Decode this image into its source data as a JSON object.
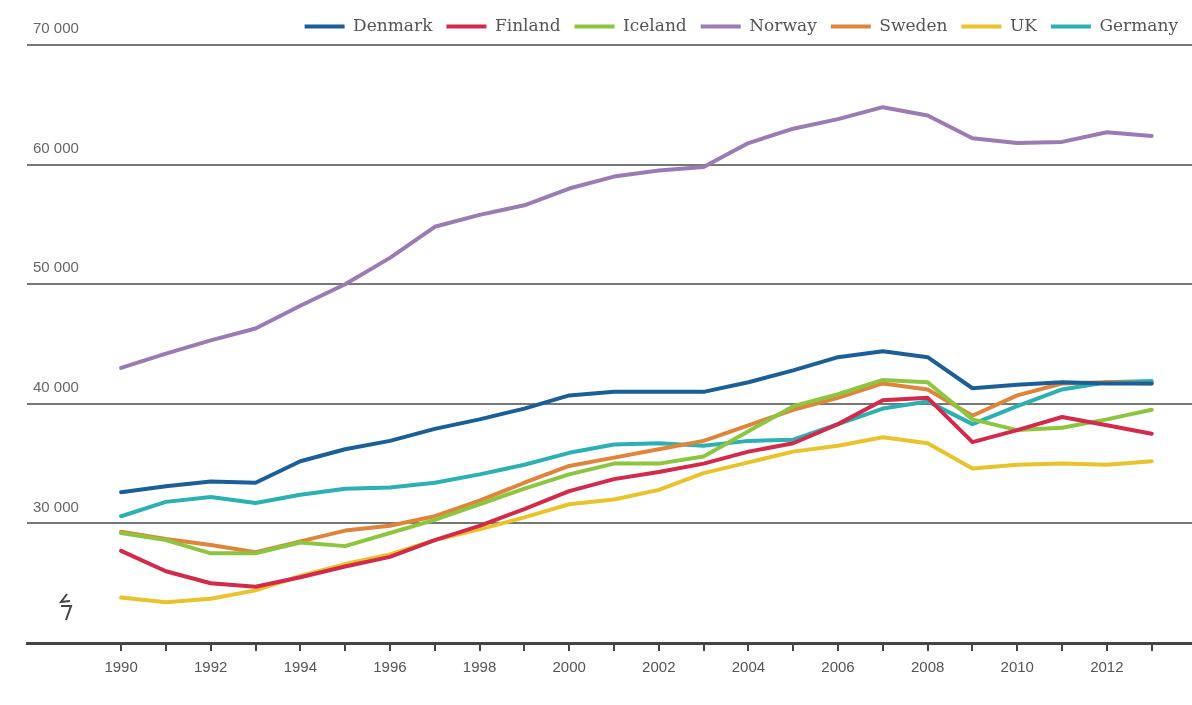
{
  "chart_data": {
    "type": "line",
    "x": [
      1990,
      1991,
      1992,
      1993,
      1994,
      1995,
      1996,
      1997,
      1998,
      1999,
      2000,
      2001,
      2002,
      2003,
      2004,
      2005,
      2006,
      2007,
      2008,
      2009,
      2010,
      2011,
      2012,
      2013
    ],
    "series": [
      {
        "name": "Denmark",
        "color": "#1a5f97",
        "values": [
          32600,
          33100,
          33500,
          33400,
          35200,
          36200,
          36900,
          37900,
          38700,
          39600,
          40700,
          41000,
          41000,
          41000,
          41800,
          42800,
          43900,
          44400,
          43900,
          41300,
          41600,
          41800,
          41700,
          41700
        ]
      },
      {
        "name": "Finland",
        "color": "#d4294a",
        "values": [
          27700,
          26000,
          25000,
          24700,
          25500,
          26400,
          27200,
          28600,
          29800,
          31200,
          32700,
          33700,
          34300,
          35000,
          36000,
          36700,
          38300,
          40300,
          40500,
          36800,
          37800,
          38900,
          38200,
          37500
        ]
      },
      {
        "name": "Iceland",
        "color": "#8cc63f",
        "values": [
          29200,
          28600,
          27500,
          27500,
          28400,
          28100,
          29200,
          30300,
          31600,
          32900,
          34100,
          35000,
          35000,
          35600,
          37700,
          39800,
          40800,
          42000,
          41800,
          38700,
          37800,
          38000,
          38700,
          39500
        ]
      },
      {
        "name": "Norway",
        "color": "#9b7bb3",
        "values": [
          43000,
          44200,
          45300,
          46300,
          48200,
          50000,
          52200,
          54800,
          55800,
          56600,
          58000,
          59000,
          59500,
          59800,
          61800,
          63000,
          63800,
          64800,
          64100,
          62200,
          61800,
          61900,
          62700,
          62400
        ]
      },
      {
        "name": "Sweden",
        "color": "#e0843a",
        "values": [
          29300,
          28700,
          28200,
          27600,
          28500,
          29400,
          29800,
          30600,
          31900,
          33400,
          34800,
          35500,
          36200,
          36900,
          38200,
          39500,
          40500,
          41700,
          41200,
          39000,
          40700,
          41700,
          41800,
          41700
        ]
      },
      {
        "name": "UK",
        "color": "#e8c42a",
        "values": [
          23800,
          23400,
          23700,
          24400,
          25600,
          26600,
          27400,
          28600,
          29500,
          30500,
          31600,
          32000,
          32800,
          34200,
          35100,
          36000,
          36500,
          37200,
          36700,
          34600,
          34900,
          35000,
          34900,
          35200
        ]
      },
      {
        "name": "Germany",
        "color": "#2bb0b4",
        "values": [
          30600,
          31800,
          32200,
          31700,
          32400,
          32900,
          33000,
          33400,
          34100,
          34900,
          35900,
          36600,
          36700,
          36500,
          36900,
          37000,
          38300,
          39600,
          40200,
          38300,
          39800,
          41200,
          41800,
          41900
        ]
      }
    ],
    "xlim": [
      1987.9,
      2013.9
    ],
    "xticks": [
      {
        "value": 1990,
        "label": "1990"
      },
      {
        "value": 1991,
        "label": null
      },
      {
        "value": 1992,
        "label": "1992"
      },
      {
        "value": 1993,
        "label": null
      },
      {
        "value": 1994,
        "label": "1994"
      },
      {
        "value": 1995,
        "label": null
      },
      {
        "value": 1996,
        "label": "1996"
      },
      {
        "value": 1997,
        "label": null
      },
      {
        "value": 1998,
        "label": "1998"
      },
      {
        "value": 1999,
        "label": null
      },
      {
        "value": 2000,
        "label": "2000"
      },
      {
        "value": 2001,
        "label": null
      },
      {
        "value": 2002,
        "label": "2002"
      },
      {
        "value": 2003,
        "label": null
      },
      {
        "value": 2004,
        "label": "2004"
      },
      {
        "value": 2005,
        "label": null
      },
      {
        "value": 2006,
        "label": "2006"
      },
      {
        "value": 2007,
        "label": null
      },
      {
        "value": 2008,
        "label": "2008"
      },
      {
        "value": 2009,
        "label": null
      },
      {
        "value": 2010,
        "label": "2010"
      },
      {
        "value": 2011,
        "label": null
      },
      {
        "value": 2012,
        "label": "2012"
      },
      {
        "value": 2013,
        "label": null
      }
    ],
    "ylim": [
      20000,
      70000
    ],
    "yticks": [
      {
        "value": 30000,
        "label": "30 000"
      },
      {
        "value": 40000,
        "label": "40 000"
      },
      {
        "value": 50000,
        "label": "50 000"
      },
      {
        "value": 60000,
        "label": "60 000"
      },
      {
        "value": 70000,
        "label": "70 000"
      }
    ],
    "grid": "y",
    "legend": "top right",
    "marker": "none",
    "line_style": "solid"
  }
}
